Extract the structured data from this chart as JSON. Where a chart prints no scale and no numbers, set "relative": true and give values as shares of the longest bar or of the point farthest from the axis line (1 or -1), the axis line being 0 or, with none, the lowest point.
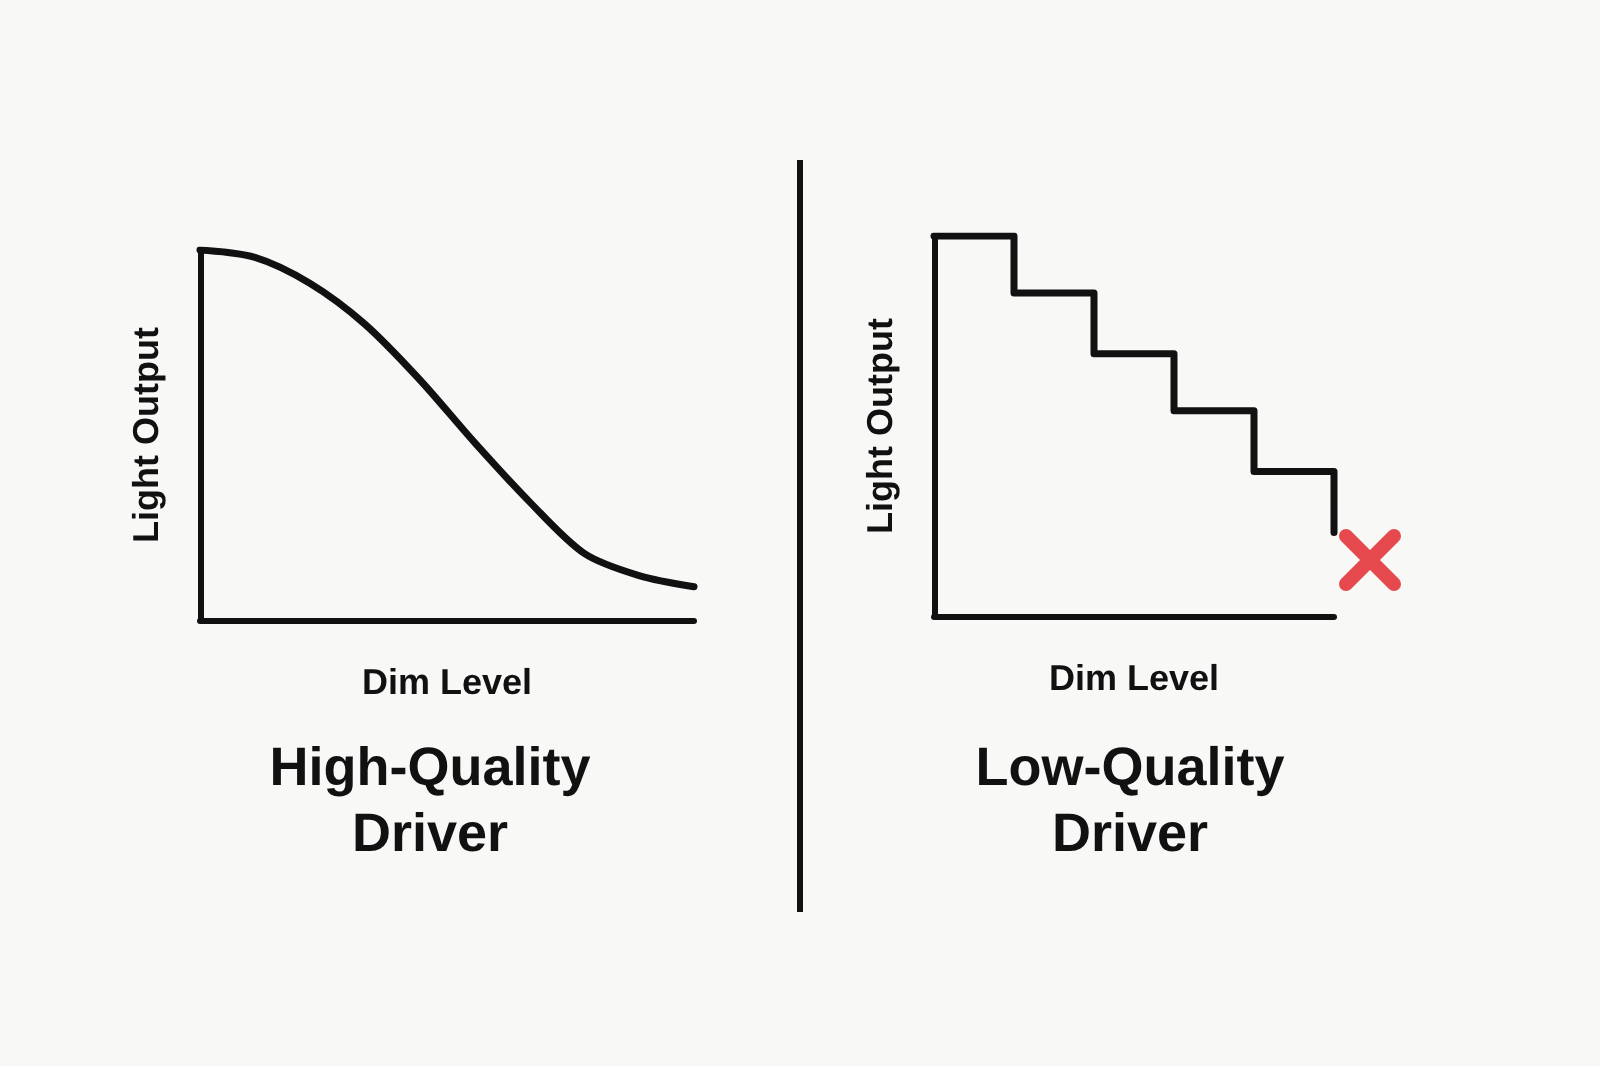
{
  "chart_data": [
    {
      "type": "line",
      "title": "High-Quality\nDriver",
      "xlabel": "Dim Level",
      "ylabel": "Light Output",
      "relative": true,
      "marker": "none",
      "color": "#111111",
      "categories": [
        null,
        null,
        null,
        null,
        null,
        null,
        null,
        null,
        null,
        null
      ],
      "values": [
        1,
        0.98,
        0.91,
        0.8,
        0.65,
        0.48,
        0.32,
        0.18,
        0.12,
        0.09
      ]
    },
    {
      "type": "step",
      "title": "Low-Quality\nDriver",
      "xlabel": "Dim Level",
      "ylabel": "Light Output",
      "relative": true,
      "marker": "none",
      "color": "#111111",
      "categories": [
        null,
        null,
        null,
        null,
        null,
        null
      ],
      "values": [
        1,
        0.85,
        0.69,
        0.54,
        0.38,
        0.22
      ]
    }
  ]
}
